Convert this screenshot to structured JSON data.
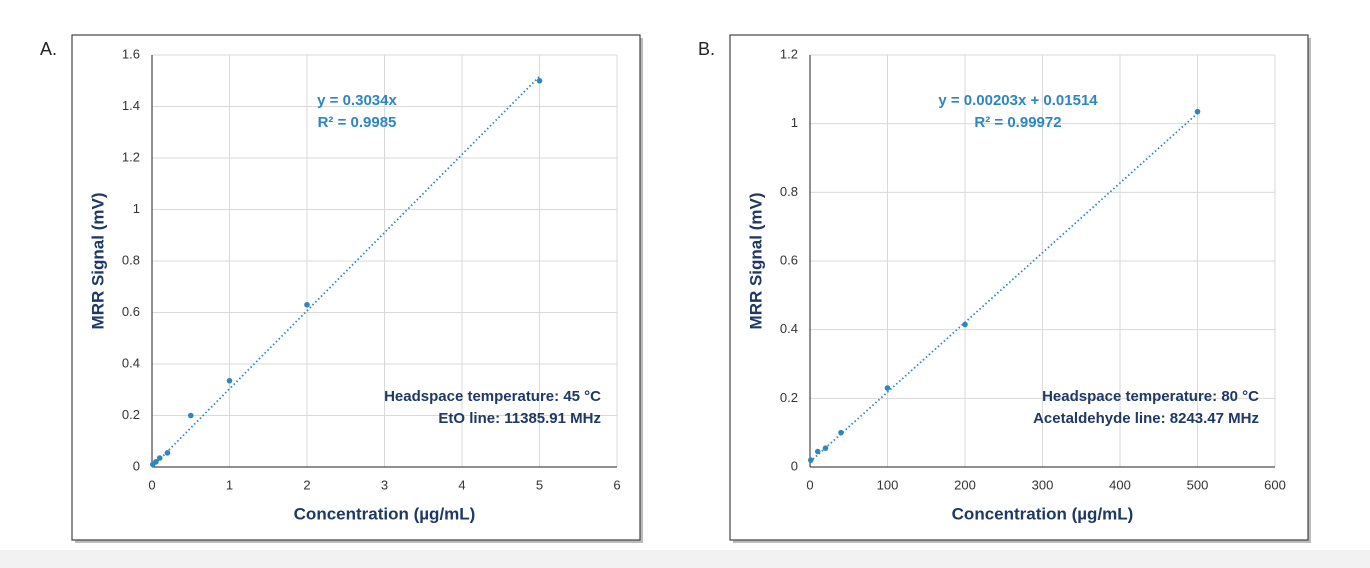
{
  "chart_data": [
    {
      "type": "scatter",
      "panel_label": "A.",
      "x_label": "Concentration (µg/mL)",
      "y_label": "MRR Signal (mV)",
      "x": [
        0.01,
        0.05,
        0.1,
        0.2,
        0.5,
        1,
        2,
        5
      ],
      "values": [
        0.01,
        0.02,
        0.035,
        0.055,
        0.2,
        0.335,
        0.63,
        1.5
      ],
      "color": "#2e86c1",
      "xlim": [
        0,
        6
      ],
      "ylim": [
        0,
        1.6
      ],
      "xticks": [
        0,
        1,
        2,
        3,
        4,
        5,
        6
      ],
      "yticks": [
        0,
        0.2,
        0.4,
        0.6,
        0.8,
        1,
        1.2,
        1.4,
        1.6
      ],
      "grid": true,
      "trendline": {
        "slope": 0.3034,
        "intercept": 0,
        "equation": "y = 0.3034x",
        "r2": "R² = 0.9985"
      },
      "annotations": [
        "Headspace temperature: 45 °C",
        "EtO line: 11385.91 MHz"
      ]
    },
    {
      "type": "scatter",
      "panel_label": "B.",
      "x_label": "Concentration (µg/mL)",
      "y_label": "MRR Signal (mV)",
      "x": [
        1,
        10,
        20,
        40,
        100,
        200,
        500
      ],
      "values": [
        0.02,
        0.045,
        0.055,
        0.1,
        0.23,
        0.415,
        1.035
      ],
      "color": "#2e86c1",
      "xlim": [
        0,
        600
      ],
      "ylim": [
        0,
        1.2
      ],
      "xticks": [
        0,
        100,
        200,
        300,
        400,
        500,
        600
      ],
      "yticks": [
        0,
        0.2,
        0.4,
        0.6,
        0.8,
        1,
        1.2
      ],
      "grid": true,
      "trendline": {
        "slope": 0.00203,
        "intercept": 0.01514,
        "equation": "y = 0.00203x + 0.01514",
        "r2": "R² = 0.99972"
      },
      "annotations": [
        "Headspace temperature: 80 °C",
        "Acetaldehyde line: 8243.47 MHz"
      ]
    }
  ]
}
